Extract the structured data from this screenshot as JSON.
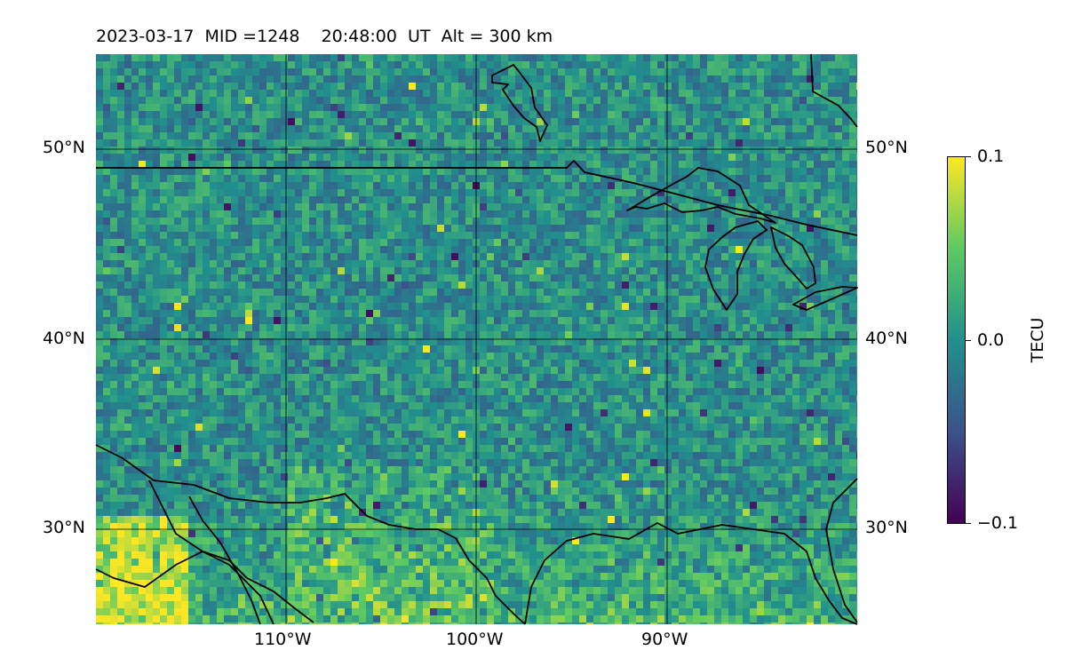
{
  "title": "2023-03-17  MID =1248    20:48:00  UT  Alt = 300 km",
  "map": {
    "lon_range": [
      -120,
      -80
    ],
    "lat_range": [
      25,
      55
    ],
    "lon_ticks": [
      "110°W",
      "100°W",
      "90°W"
    ],
    "lat_ticks": [
      "50°N",
      "40°N",
      "30°N"
    ],
    "grid": true
  },
  "colorbar": {
    "label": "TECU",
    "ticks": [
      "0.1",
      "0.0",
      "−0.1"
    ],
    "range": [
      -0.1,
      0.1
    ],
    "colormap": "viridis"
  },
  "colors": {
    "low": "#440154",
    "mid": "#21908d",
    "high": "#fde725"
  }
}
